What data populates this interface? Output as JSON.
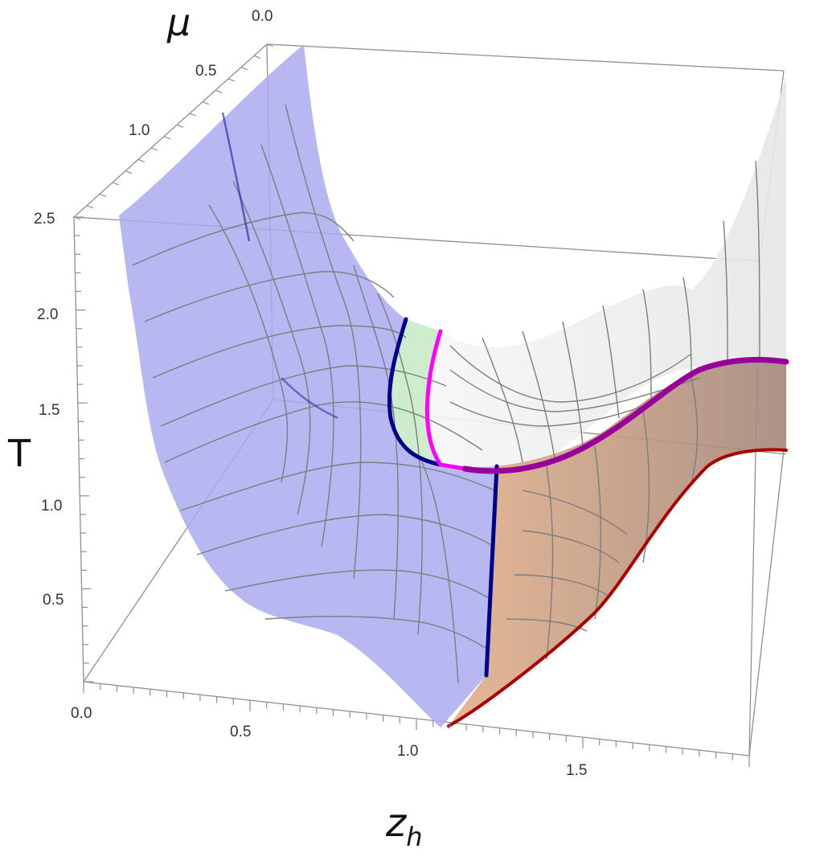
{
  "chart_data": {
    "type": "surface3d",
    "title": "",
    "axes": {
      "x": {
        "label": "z",
        "label_sub": "h",
        "ticks": [
          "0.0",
          "0.5",
          "1.0",
          "1.5"
        ]
      },
      "y": {
        "label": "μ",
        "ticks": [
          "0.0",
          "0.5",
          "1.0"
        ]
      },
      "z": {
        "label": "T",
        "ticks": [
          "0.5",
          "1.0",
          "1.5",
          "2.0",
          "2.5"
        ]
      }
    },
    "regions": [
      {
        "name": "",
        "color": "#aaaaf0"
      },
      {
        "name": "",
        "color": "#c6ecc6"
      },
      {
        "name": "",
        "color": "#eeeeee"
      },
      {
        "name": "",
        "color": "#d4a484"
      }
    ],
    "curves": [
      {
        "color": "#00008b"
      },
      {
        "color": "#ff00ff"
      },
      {
        "color": "#990099"
      },
      {
        "color": "#aa0000"
      }
    ]
  }
}
